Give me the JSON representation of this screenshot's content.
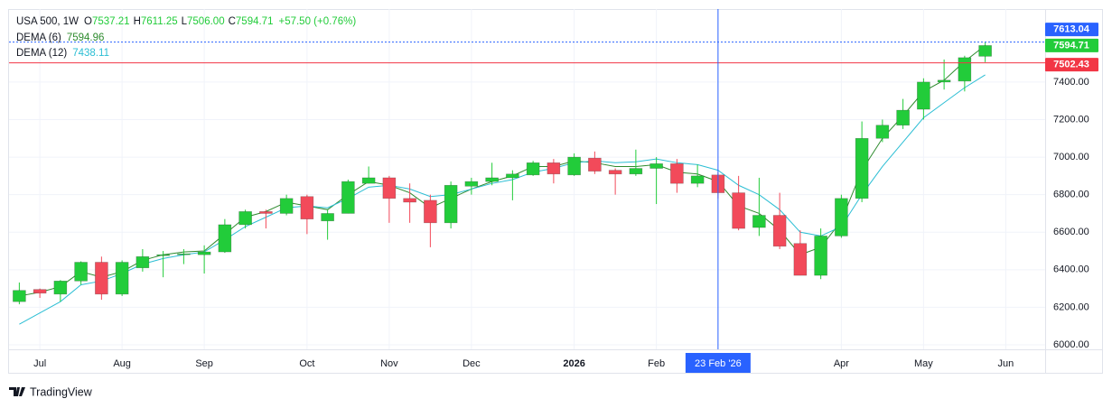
{
  "chart_data": {
    "type": "candlestick",
    "header": {
      "symbol": "USA 500, 1W",
      "ohlc": [
        {
          "label": "O",
          "value": "7537.21"
        },
        {
          "label": "H",
          "value": "7611.25"
        },
        {
          "label": "L",
          "value": "7506.00"
        },
        {
          "label": "C",
          "value": "7594.71"
        }
      ],
      "change": "+57.50 (+0.76%)"
    },
    "categories": [
      null,
      "Jul",
      null,
      null,
      null,
      "Aug",
      null,
      null,
      null,
      "Sep",
      null,
      null,
      null,
      null,
      "Oct",
      null,
      null,
      null,
      "Nov",
      null,
      null,
      null,
      "Dec",
      null,
      null,
      null,
      null,
      "2026",
      null,
      null,
      null,
      "Feb",
      null,
      null,
      null,
      null,
      null,
      null,
      null,
      null,
      "Apr",
      null,
      null,
      null,
      "May",
      null,
      null,
      null,
      "Jun"
    ],
    "open": [
      6230,
      6295,
      6270,
      6340,
      6440,
      6270,
      6410,
      6475,
      6480,
      6480,
      6495,
      6640,
      6710,
      6700,
      6790,
      6660,
      6700,
      6860,
      6890,
      6780,
      6770,
      6650,
      6845,
      6870,
      6890,
      6905,
      6970,
      6905,
      6995,
      6930,
      6910,
      6940,
      6965,
      6860,
      6905,
      6810,
      6625,
      6690,
      6540,
      6370,
      6580,
      6780,
      7100,
      7170,
      7255,
      7400,
      7405,
      7537.21,
      null
    ],
    "high": [
      6332,
      6300,
      6345,
      6445,
      6470,
      6450,
      6510,
      6500,
      6510,
      6530,
      6670,
      6720,
      6720,
      6800,
      6800,
      6720,
      6880,
      6950,
      6900,
      6860,
      6800,
      6870,
      6890,
      6970,
      6930,
      6980,
      6990,
      7020,
      7030,
      6940,
      7040,
      7000,
      6990,
      6960,
      6920,
      6900,
      6890,
      6810,
      6610,
      6620,
      6800,
      7190,
      7200,
      7310,
      7420,
      7520,
      7540,
      7611.25,
      null
    ],
    "low": [
      6216,
      6250,
      6230,
      6320,
      6240,
      6260,
      6390,
      6360,
      6430,
      6380,
      6490,
      6620,
      6620,
      6690,
      6590,
      6560,
      6700,
      6860,
      6650,
      6650,
      6520,
      6620,
      6800,
      6850,
      6770,
      6900,
      6860,
      6900,
      6910,
      6800,
      6900,
      6750,
      6810,
      6840,
      6780,
      6610,
      6580,
      6510,
      6370,
      6350,
      6570,
      6760,
      7080,
      7150,
      7200,
      7360,
      7350,
      7506.0,
      null
    ],
    "close": [
      6290,
      6275,
      6340,
      6440,
      6270,
      6440,
      6470,
      6480,
      6485,
      6495,
      6640,
      6710,
      6700,
      6780,
      6670,
      6700,
      6870,
      6890,
      6780,
      6760,
      6650,
      6850,
      6870,
      6890,
      6910,
      6970,
      6910,
      7000,
      6925,
      6910,
      6940,
      6965,
      6860,
      6900,
      6810,
      6620,
      6690,
      6525,
      6370,
      6580,
      6780,
      7100,
      7170,
      7250,
      7400,
      7410,
      7530,
      7594.71,
      null
    ],
    "up_color": "#22cc3a",
    "down_color": "#f24a5a",
    "series": [
      {
        "name": "DEMA (6)",
        "color": "#2e8b2e",
        "values": [
          6260,
          6280,
          6310,
          6390,
          6360,
          6390,
          6450,
          6480,
          6495,
          6500,
          6590,
          6680,
          6710,
          6760,
          6740,
          6720,
          6800,
          6870,
          6850,
          6810,
          6730,
          6780,
          6830,
          6870,
          6900,
          6950,
          6950,
          6980,
          6970,
          6950,
          6950,
          6960,
          6920,
          6910,
          6870,
          6740,
          6700,
          6610,
          6480,
          6520,
          6660,
          6930,
          7100,
          7220,
          7350,
          7410,
          7510,
          7594.96,
          null
        ]
      },
      {
        "name": "DEMA (12)",
        "color": "#2bbed4",
        "values": [
          6110,
          6170,
          6230,
          6320,
          6340,
          6380,
          6430,
          6460,
          6480,
          6495,
          6560,
          6630,
          6680,
          6730,
          6740,
          6730,
          6780,
          6840,
          6850,
          6830,
          6790,
          6800,
          6830,
          6860,
          6880,
          6920,
          6940,
          6970,
          6980,
          6970,
          6975,
          6990,
          6970,
          6960,
          6930,
          6850,
          6800,
          6720,
          6600,
          6580,
          6630,
          6800,
          6950,
          7080,
          7210,
          7290,
          7370,
          7438.11,
          null
        ]
      }
    ],
    "ylim": [
      5976,
      7789
    ],
    "yticks": [
      {
        "value": 6000,
        "label": "6000.00"
      },
      {
        "value": 6200,
        "label": "6200.00"
      },
      {
        "value": 6400,
        "label": "6400.00"
      },
      {
        "value": 6600,
        "label": "6600.00"
      },
      {
        "value": 6800,
        "label": "6800.00"
      },
      {
        "value": 7000,
        "label": "7000.00"
      },
      {
        "value": 7200,
        "label": "7200.00"
      },
      {
        "value": 7400,
        "label": "7400.00"
      }
    ],
    "grid": true,
    "crosshair": {
      "price": 7613.04,
      "date_label": "23 Feb '26",
      "color": "#2962ff"
    },
    "last_price": {
      "price": 7594.71,
      "color": "#22cc3a"
    },
    "price_line": {
      "price": 7502.43,
      "color": "#f23645"
    }
  },
  "branding": "TradingView"
}
